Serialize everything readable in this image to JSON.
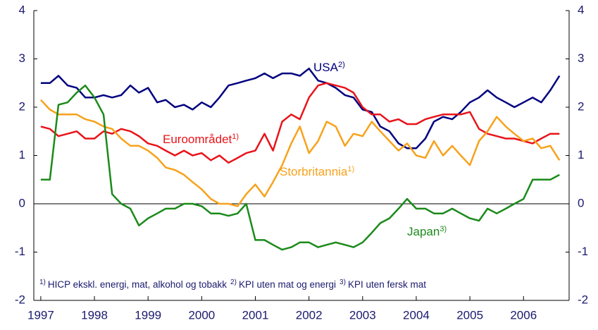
{
  "chart_data": {
    "type": "line",
    "x": [
      1997.0,
      1997.17,
      1997.33,
      1997.5,
      1997.67,
      1997.83,
      1998.0,
      1998.17,
      1998.33,
      1998.5,
      1998.67,
      1998.83,
      1999.0,
      1999.17,
      1999.33,
      1999.5,
      1999.67,
      1999.83,
      2000.0,
      2000.17,
      2000.33,
      2000.5,
      2000.67,
      2000.83,
      2001.0,
      2001.17,
      2001.33,
      2001.5,
      2001.67,
      2001.83,
      2002.0,
      2002.17,
      2002.33,
      2002.5,
      2002.67,
      2002.83,
      2003.0,
      2003.17,
      2003.33,
      2003.5,
      2003.67,
      2003.83,
      2004.0,
      2004.17,
      2004.33,
      2004.5,
      2004.67,
      2004.83,
      2005.0,
      2005.17,
      2005.33,
      2005.5,
      2005.67,
      2005.83,
      2006.0,
      2006.17,
      2006.33,
      2006.5,
      2006.67
    ],
    "series": [
      {
        "name": "USA",
        "note": "2)",
        "color": "#00007f",
        "values": [
          2.5,
          2.5,
          2.65,
          2.45,
          2.4,
          2.2,
          2.2,
          2.25,
          2.2,
          2.25,
          2.45,
          2.3,
          2.4,
          2.1,
          2.15,
          2.0,
          2.05,
          1.95,
          2.1,
          2.0,
          2.2,
          2.45,
          2.5,
          2.55,
          2.6,
          2.7,
          2.6,
          2.7,
          2.7,
          2.65,
          2.8,
          2.55,
          2.5,
          2.4,
          2.25,
          2.2,
          1.95,
          1.9,
          1.6,
          1.5,
          1.25,
          1.15,
          1.15,
          1.35,
          1.7,
          1.8,
          1.75,
          1.9,
          2.1,
          2.2,
          2.35,
          2.2,
          2.1,
          2.0,
          2.1,
          2.2,
          2.1,
          2.35,
          2.65
        ]
      },
      {
        "name": "Euroområdet",
        "note": "1)",
        "color": "#e8141a",
        "values": [
          1.6,
          1.55,
          1.4,
          1.45,
          1.5,
          1.35,
          1.35,
          1.5,
          1.45,
          1.55,
          1.5,
          1.4,
          1.25,
          1.2,
          1.1,
          1.0,
          1.1,
          1.0,
          1.05,
          0.9,
          1.0,
          0.85,
          0.95,
          1.05,
          1.1,
          1.45,
          1.1,
          1.7,
          1.85,
          1.75,
          2.2,
          2.45,
          2.5,
          2.45,
          2.4,
          2.3,
          2.0,
          1.85,
          1.85,
          1.7,
          1.75,
          1.65,
          1.65,
          1.75,
          1.8,
          1.85,
          1.85,
          1.85,
          1.9,
          1.55,
          1.45,
          1.4,
          1.35,
          1.35,
          1.3,
          1.25,
          1.35,
          1.45,
          1.45
        ]
      },
      {
        "name": "Storbritannia",
        "note": "1)",
        "color": "#f7a21b",
        "values": [
          2.15,
          1.95,
          1.85,
          1.85,
          1.85,
          1.75,
          1.7,
          1.6,
          1.55,
          1.35,
          1.2,
          1.2,
          1.1,
          0.95,
          0.75,
          0.7,
          0.6,
          0.45,
          0.3,
          0.1,
          0.0,
          0.0,
          -0.05,
          0.2,
          0.4,
          0.15,
          0.45,
          0.8,
          1.25,
          1.6,
          1.05,
          1.3,
          1.7,
          1.6,
          1.2,
          1.45,
          1.4,
          1.7,
          1.5,
          1.3,
          1.1,
          1.25,
          1.0,
          0.95,
          1.3,
          1.0,
          1.2,
          1.0,
          0.8,
          1.3,
          1.5,
          1.8,
          1.6,
          1.45,
          1.3,
          1.35,
          1.15,
          1.2,
          0.9
        ]
      },
      {
        "name": "Japan",
        "note": "3)",
        "color": "#1a8a1a",
        "values": [
          0.5,
          0.5,
          2.05,
          2.1,
          2.3,
          2.45,
          2.2,
          1.85,
          0.2,
          0.0,
          -0.1,
          -0.45,
          -0.3,
          -0.2,
          -0.1,
          -0.1,
          0.0,
          0.0,
          -0.05,
          -0.2,
          -0.2,
          -0.25,
          -0.2,
          0.0,
          -0.75,
          -0.75,
          -0.85,
          -0.95,
          -0.9,
          -0.8,
          -0.8,
          -0.9,
          -0.85,
          -0.8,
          -0.85,
          -0.9,
          -0.8,
          -0.6,
          -0.4,
          -0.3,
          -0.1,
          0.1,
          -0.1,
          -0.1,
          -0.2,
          -0.2,
          -0.1,
          -0.2,
          -0.3,
          -0.35,
          -0.1,
          -0.2,
          -0.1,
          0.0,
          0.1,
          0.5,
          0.5,
          0.5,
          0.6
        ]
      }
    ],
    "footnotes": [
      {
        "mark": "1)",
        "text": "HICP ekskl. energi, mat, alkohol og tobakk"
      },
      {
        "mark": "2)",
        "text": "KPI uten mat og energi"
      },
      {
        "mark": "3)",
        "text": "KPI uten fersk mat"
      }
    ],
    "xlim": [
      1996.87,
      2006.85
    ],
    "xticks": [
      1997,
      1998,
      1999,
      2000,
      2001,
      2002,
      2003,
      2004,
      2005,
      2006
    ],
    "ylim": [
      -2,
      4
    ],
    "yticks": [
      -2,
      -1,
      0,
      1,
      2,
      3,
      4
    ],
    "y2lim": [
      -2,
      4
    ],
    "y2ticks": [
      -2,
      -1,
      0,
      1,
      2,
      3,
      4
    ],
    "grid": false
  }
}
